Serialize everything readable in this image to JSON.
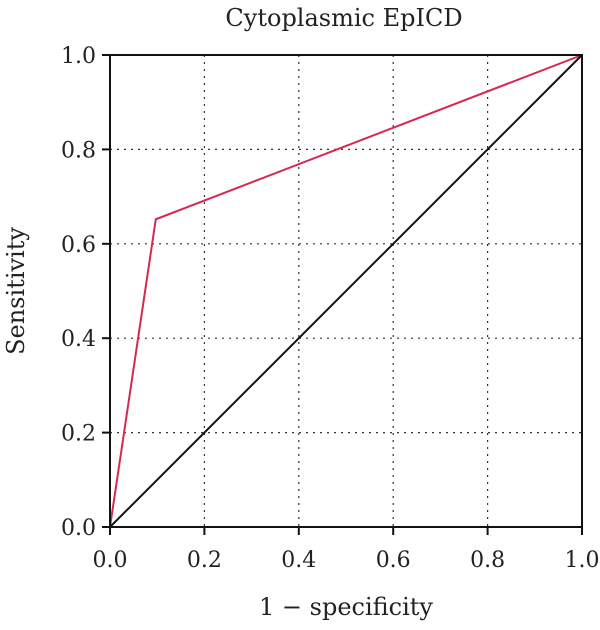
{
  "chart_data": {
    "type": "line",
    "title": "Cytoplasmic EpICD",
    "xlabel": "1 − specificity",
    "ylabel": "Sensitivity",
    "xlim": [
      0,
      1
    ],
    "ylim": [
      0,
      1
    ],
    "xticks": [
      "0.0",
      "0.2",
      "0.4",
      "0.6",
      "0.8",
      "1.0"
    ],
    "yticks": [
      "0.0",
      "0.2",
      "0.4",
      "0.6",
      "0.8",
      "1.0"
    ],
    "grid": true,
    "series": [
      {
        "color": "#d6294f",
        "x": [
          0.0,
          0.097,
          1.0
        ],
        "y": [
          0.0,
          0.652,
          1.0
        ]
      },
      {
        "color": "#111111",
        "x": [
          0.0,
          1.0
        ],
        "y": [
          0.0,
          1.0
        ]
      }
    ]
  }
}
